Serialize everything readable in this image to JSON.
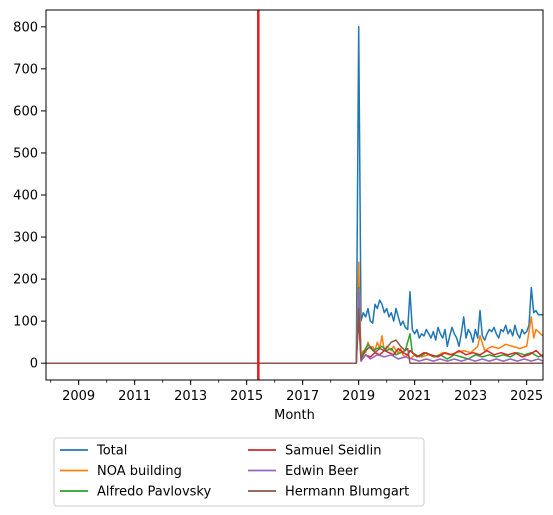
{
  "chart_data": {
    "type": "line",
    "title": "",
    "xlabel": "Month",
    "ylabel": "",
    "x_tick_labels": [
      "2009",
      "2011",
      "2013",
      "2015",
      "2017",
      "2019",
      "2021",
      "2023",
      "2025"
    ],
    "y_tick_labels": [
      "0",
      "100",
      "200",
      "300",
      "400",
      "500",
      "600",
      "700",
      "800"
    ],
    "xlim": [
      "2007-11",
      "2025-08"
    ],
    "ylim": [
      -40,
      840
    ],
    "vertical_line": {
      "x": "2015-06",
      "color": "#e31a1c"
    },
    "legend_placement": "bottom-center",
    "grid": false,
    "series": [
      {
        "name": "Total",
        "color": "#1f77b4",
        "points": [
          [
            "2007-11",
            0
          ],
          [
            "2018-12",
            0
          ],
          [
            "2019-01",
            800
          ],
          [
            "2019-02",
            100
          ],
          [
            "2019-03",
            120
          ],
          [
            "2019-04",
            110
          ],
          [
            "2019-05",
            130
          ],
          [
            "2019-06",
            100
          ],
          [
            "2019-07",
            95
          ],
          [
            "2019-08",
            140
          ],
          [
            "2019-09",
            130
          ],
          [
            "2019-10",
            150
          ],
          [
            "2019-11",
            140
          ],
          [
            "2019-12",
            120
          ],
          [
            "2020-01",
            130
          ],
          [
            "2020-02",
            110
          ],
          [
            "2020-03",
            120
          ],
          [
            "2020-04",
            100
          ],
          [
            "2020-05",
            130
          ],
          [
            "2020-06",
            110
          ],
          [
            "2020-07",
            90
          ],
          [
            "2020-08",
            100
          ],
          [
            "2020-09",
            85
          ],
          [
            "2020-10",
            80
          ],
          [
            "2020-11",
            170
          ],
          [
            "2020-12",
            80
          ],
          [
            "2021-01",
            70
          ],
          [
            "2021-02",
            80
          ],
          [
            "2021-03",
            60
          ],
          [
            "2021-04",
            70
          ],
          [
            "2021-05",
            65
          ],
          [
            "2021-06",
            80
          ],
          [
            "2021-07",
            70
          ],
          [
            "2021-08",
            60
          ],
          [
            "2021-09",
            75
          ],
          [
            "2021-10",
            55
          ],
          [
            "2021-11",
            85
          ],
          [
            "2021-12",
            70
          ],
          [
            "2022-01",
            60
          ],
          [
            "2022-02",
            80
          ],
          [
            "2022-03",
            40
          ],
          [
            "2022-04",
            65
          ],
          [
            "2022-05",
            85
          ],
          [
            "2022-06",
            70
          ],
          [
            "2022-07",
            60
          ],
          [
            "2022-08",
            40
          ],
          [
            "2022-09",
            70
          ],
          [
            "2022-10",
            110
          ],
          [
            "2022-11",
            60
          ],
          [
            "2022-12",
            80
          ],
          [
            "2023-01",
            70
          ],
          [
            "2023-02",
            50
          ],
          [
            "2023-03",
            80
          ],
          [
            "2023-04",
            60
          ],
          [
            "2023-05",
            125
          ],
          [
            "2023-06",
            65
          ],
          [
            "2023-07",
            55
          ],
          [
            "2023-08",
            70
          ],
          [
            "2023-09",
            80
          ],
          [
            "2023-10",
            75
          ],
          [
            "2023-11",
            85
          ],
          [
            "2023-12",
            70
          ],
          [
            "2024-01",
            60
          ],
          [
            "2024-02",
            80
          ],
          [
            "2024-03",
            75
          ],
          [
            "2024-04",
            90
          ],
          [
            "2024-05",
            70
          ],
          [
            "2024-06",
            80
          ],
          [
            "2024-07",
            65
          ],
          [
            "2024-08",
            90
          ],
          [
            "2024-09",
            70
          ],
          [
            "2024-10",
            60
          ],
          [
            "2024-11",
            80
          ],
          [
            "2024-12",
            70
          ],
          [
            "2025-01",
            75
          ],
          [
            "2025-02",
            90
          ],
          [
            "2025-03",
            180
          ],
          [
            "2025-04",
            120
          ],
          [
            "2025-05",
            125
          ],
          [
            "2025-06",
            115
          ],
          [
            "2025-08",
            115
          ]
        ]
      },
      {
        "name": "NOA building",
        "color": "#ff7f0e",
        "points": [
          [
            "2007-11",
            0
          ],
          [
            "2018-12",
            0
          ],
          [
            "2019-01",
            240
          ],
          [
            "2019-02",
            20
          ],
          [
            "2019-03",
            30
          ],
          [
            "2019-04",
            25
          ],
          [
            "2019-05",
            50
          ],
          [
            "2019-06",
            35
          ],
          [
            "2019-07",
            40
          ],
          [
            "2019-08",
            30
          ],
          [
            "2019-09",
            50
          ],
          [
            "2019-10",
            35
          ],
          [
            "2019-11",
            65
          ],
          [
            "2019-12",
            30
          ],
          [
            "2020-01",
            40
          ],
          [
            "2020-02",
            35
          ],
          [
            "2020-03",
            30
          ],
          [
            "2020-04",
            40
          ],
          [
            "2020-05",
            30
          ],
          [
            "2020-06",
            25
          ],
          [
            "2020-07",
            35
          ],
          [
            "2020-08",
            20
          ],
          [
            "2020-09",
            15
          ],
          [
            "2020-10",
            20
          ],
          [
            "2020-11",
            10
          ],
          [
            "2021-01",
            20
          ],
          [
            "2021-04",
            15
          ],
          [
            "2021-07",
            20
          ],
          [
            "2021-10",
            15
          ],
          [
            "2022-01",
            25
          ],
          [
            "2022-04",
            20
          ],
          [
            "2022-07",
            25
          ],
          [
            "2022-10",
            30
          ],
          [
            "2023-01",
            25
          ],
          [
            "2023-04",
            40
          ],
          [
            "2023-05",
            65
          ],
          [
            "2023-07",
            30
          ],
          [
            "2023-10",
            40
          ],
          [
            "2024-01",
            35
          ],
          [
            "2024-04",
            45
          ],
          [
            "2024-07",
            40
          ],
          [
            "2024-10",
            35
          ],
          [
            "2025-01",
            40
          ],
          [
            "2025-03",
            110
          ],
          [
            "2025-04",
            60
          ],
          [
            "2025-05",
            80
          ],
          [
            "2025-08",
            65
          ]
        ]
      },
      {
        "name": "Alfredo Pavlovsky",
        "color": "#2ca02c",
        "points": [
          [
            "2007-11",
            0
          ],
          [
            "2018-12",
            0
          ],
          [
            "2019-01",
            180
          ],
          [
            "2019-02",
            10
          ],
          [
            "2019-03",
            25
          ],
          [
            "2019-05",
            45
          ],
          [
            "2019-07",
            30
          ],
          [
            "2019-09",
            35
          ],
          [
            "2019-11",
            40
          ],
          [
            "2020-01",
            30
          ],
          [
            "2020-03",
            35
          ],
          [
            "2020-05",
            20
          ],
          [
            "2020-07",
            25
          ],
          [
            "2020-09",
            30
          ],
          [
            "2020-11",
            70
          ],
          [
            "2020-12",
            25
          ],
          [
            "2021-03",
            15
          ],
          [
            "2021-06",
            25
          ],
          [
            "2021-09",
            15
          ],
          [
            "2021-12",
            20
          ],
          [
            "2022-03",
            10
          ],
          [
            "2022-06",
            20
          ],
          [
            "2022-09",
            15
          ],
          [
            "2022-12",
            10
          ],
          [
            "2023-03",
            20
          ],
          [
            "2023-06",
            15
          ],
          [
            "2023-09",
            20
          ],
          [
            "2023-12",
            15
          ],
          [
            "2024-03",
            20
          ],
          [
            "2024-06",
            15
          ],
          [
            "2024-09",
            25
          ],
          [
            "2024-12",
            20
          ],
          [
            "2025-03",
            25
          ],
          [
            "2025-06",
            15
          ],
          [
            "2025-08",
            20
          ]
        ]
      },
      {
        "name": "Samuel Seidlin",
        "color": "#d62728",
        "points": [
          [
            "2007-11",
            0
          ],
          [
            "2018-12",
            0
          ],
          [
            "2019-01",
            110
          ],
          [
            "2019-02",
            5
          ],
          [
            "2019-04",
            20
          ],
          [
            "2019-06",
            15
          ],
          [
            "2019-08",
            25
          ],
          [
            "2019-10",
            20
          ],
          [
            "2019-12",
            30
          ],
          [
            "2020-02",
            25
          ],
          [
            "2020-04",
            20
          ],
          [
            "2020-06",
            35
          ],
          [
            "2020-08",
            25
          ],
          [
            "2020-10",
            20
          ],
          [
            "2020-11",
            30
          ],
          [
            "2021-02",
            15
          ],
          [
            "2021-05",
            25
          ],
          [
            "2021-08",
            20
          ],
          [
            "2021-11",
            15
          ],
          [
            "2022-02",
            25
          ],
          [
            "2022-05",
            20
          ],
          [
            "2022-08",
            30
          ],
          [
            "2022-11",
            20
          ],
          [
            "2023-02",
            25
          ],
          [
            "2023-05",
            20
          ],
          [
            "2023-08",
            30
          ],
          [
            "2023-11",
            20
          ],
          [
            "2024-02",
            25
          ],
          [
            "2024-05",
            20
          ],
          [
            "2024-08",
            25
          ],
          [
            "2024-11",
            15
          ],
          [
            "2025-02",
            20
          ],
          [
            "2025-05",
            30
          ],
          [
            "2025-08",
            15
          ]
        ]
      },
      {
        "name": "Edwin Beer",
        "color": "#9467bd",
        "points": [
          [
            "2007-11",
            0
          ],
          [
            "2018-12",
            0
          ],
          [
            "2019-01",
            175
          ],
          [
            "2019-02",
            5
          ],
          [
            "2019-04",
            20
          ],
          [
            "2019-06",
            10
          ],
          [
            "2019-09",
            20
          ],
          [
            "2019-12",
            15
          ],
          [
            "2020-03",
            20
          ],
          [
            "2020-06",
            10
          ],
          [
            "2020-09",
            15
          ],
          [
            "2020-12",
            10
          ],
          [
            "2021-03",
            5
          ],
          [
            "2021-06",
            10
          ],
          [
            "2021-09",
            5
          ],
          [
            "2021-12",
            10
          ],
          [
            "2022-03",
            5
          ],
          [
            "2022-06",
            10
          ],
          [
            "2022-09",
            5
          ],
          [
            "2022-12",
            10
          ],
          [
            "2023-03",
            5
          ],
          [
            "2023-06",
            10
          ],
          [
            "2023-09",
            5
          ],
          [
            "2023-12",
            10
          ],
          [
            "2024-03",
            5
          ],
          [
            "2024-06",
            10
          ],
          [
            "2024-09",
            5
          ],
          [
            "2024-12",
            10
          ],
          [
            "2025-03",
            5
          ],
          [
            "2025-06",
            10
          ],
          [
            "2025-08",
            5
          ]
        ]
      },
      {
        "name": "Hermann Blumgart",
        "color": "#8c564b",
        "points": [
          [
            "2007-11",
            0
          ],
          [
            "2018-12",
            0
          ],
          [
            "2019-01",
            130
          ],
          [
            "2019-02",
            10
          ],
          [
            "2019-04",
            30
          ],
          [
            "2019-06",
            40
          ],
          [
            "2019-08",
            25
          ],
          [
            "2019-10",
            35
          ],
          [
            "2019-12",
            30
          ],
          [
            "2020-03",
            50
          ],
          [
            "2020-05",
            55
          ],
          [
            "2020-07",
            40
          ],
          [
            "2020-09",
            30
          ],
          [
            "2020-10",
            35
          ],
          [
            "2020-11",
            0
          ],
          [
            "2025-08",
            0
          ]
        ]
      }
    ]
  }
}
